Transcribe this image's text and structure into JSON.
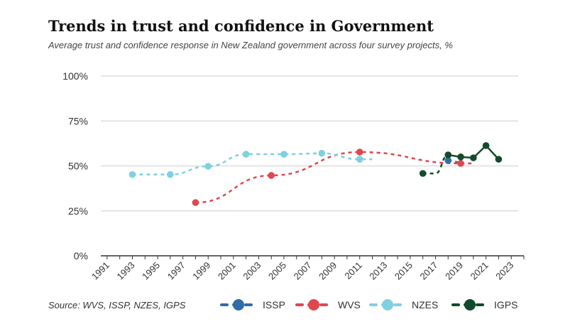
{
  "title": "Trends in trust and confidence in Government",
  "subtitle": "Average trust and confidence response in New Zealand government across four survey projects, %",
  "source": "Source: WVS, ISSP, NZES, IGPS",
  "chart_data": {
    "type": "line",
    "title": "Trends in trust and confidence in Government",
    "xlabel": "",
    "ylabel": "",
    "ylim": [
      0,
      100
    ],
    "xlim": [
      1990.5,
      2024
    ],
    "yticks": [
      "0%",
      "25%",
      "50%",
      "75%",
      "100%"
    ],
    "xticks": [
      "1991",
      "1993",
      "1995",
      "1997",
      "1999",
      "2001",
      "2003",
      "2005",
      "2007",
      "2009",
      "2011",
      "2013",
      "2015",
      "2017",
      "2019",
      "2021",
      "2023"
    ],
    "grid": true,
    "legend_placement": "bottom",
    "series": [
      {
        "name": "ISSP",
        "color": "#2f6ea6",
        "x": [
          2018
        ],
        "y": [
          53
        ]
      },
      {
        "name": "WVS",
        "color": "#e0474f",
        "x": [
          1998,
          2004,
          2011,
          2019
        ],
        "y": [
          29.6,
          44.7,
          57.7,
          51.4
        ]
      },
      {
        "name": "NZES",
        "color": "#7fd0e0",
        "x": [
          1993,
          1996,
          1999,
          2002,
          2005,
          2008,
          2011
        ],
        "y": [
          45.2,
          45.2,
          49.8,
          56.5,
          56.5,
          57,
          53.7
        ]
      },
      {
        "name": "IGPS",
        "color": "#134a2c",
        "x": [
          2016,
          2018,
          2019,
          2020,
          2021,
          2022
        ],
        "y": [
          45.8,
          56.1,
          55,
          54.5,
          61.3,
          53.7
        ]
      }
    ]
  }
}
